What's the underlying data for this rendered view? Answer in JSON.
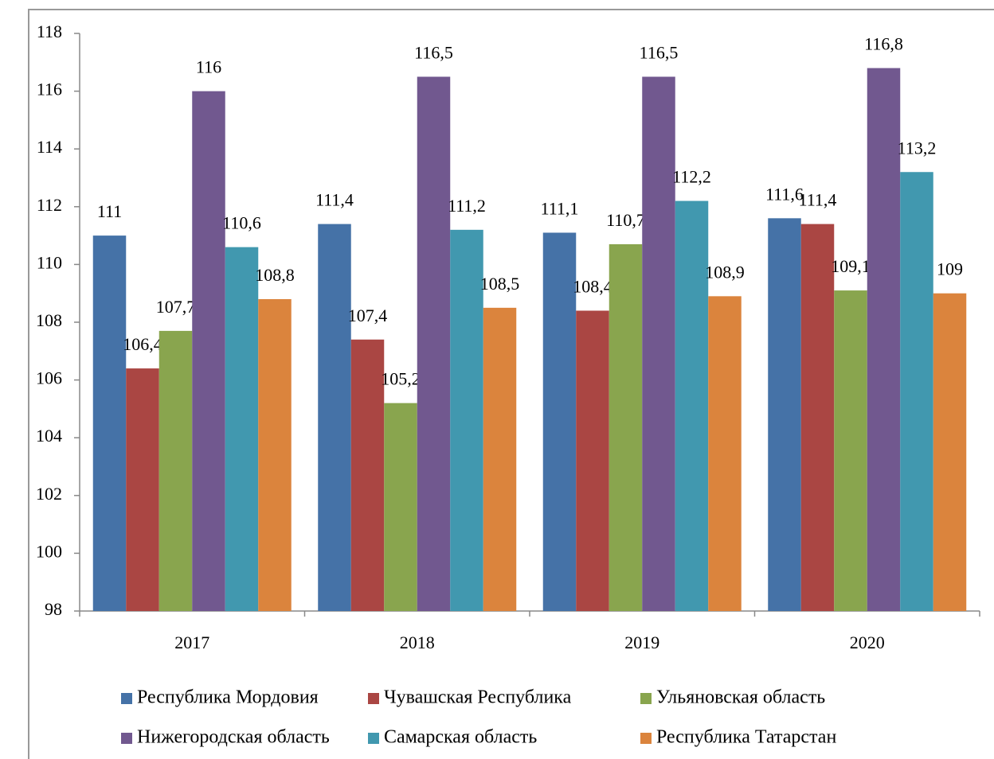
{
  "chart_data": {
    "type": "bar",
    "categories": [
      "2017",
      "2018",
      "2019",
      "2020"
    ],
    "series": [
      {
        "name": "Республика Мордовия",
        "color": "#4572a7",
        "values": [
          111,
          111.4,
          111.1,
          111.6
        ],
        "value_labels": [
          "111",
          "111,4",
          "111,1",
          "111,6"
        ]
      },
      {
        "name": "Чувашская Республика",
        "color": "#aa4643",
        "values": [
          106.4,
          107.4,
          108.4,
          111.4
        ],
        "value_labels": [
          "106,4",
          "107,4",
          "108,4",
          "111,4"
        ]
      },
      {
        "name": "Ульяновская область",
        "color": "#89a54e",
        "values": [
          107.7,
          105.2,
          110.7,
          109.1
        ],
        "value_labels": [
          "107,7",
          "105,2",
          "110,7",
          "109,1"
        ]
      },
      {
        "name": "Нижегородская область",
        "color": "#71588f",
        "values": [
          116,
          116.5,
          116.5,
          116.8
        ],
        "value_labels": [
          "116",
          "116,5",
          "116,5",
          "116,8"
        ]
      },
      {
        "name": "Самарская область",
        "color": "#4198af",
        "values": [
          110.6,
          111.2,
          112.2,
          113.2
        ],
        "value_labels": [
          "110,6",
          "111,2",
          "112,2",
          "113,2"
        ]
      },
      {
        "name": "Республика Татарстан",
        "color": "#db843d",
        "values": [
          108.8,
          108.5,
          108.9,
          109
        ],
        "value_labels": [
          "108,8",
          "108,5",
          "108,9",
          "109"
        ]
      }
    ],
    "ylim": [
      98,
      118
    ],
    "yticks": [
      98,
      100,
      102,
      104,
      106,
      108,
      110,
      112,
      114,
      116,
      118
    ],
    "legend": "bottom"
  }
}
